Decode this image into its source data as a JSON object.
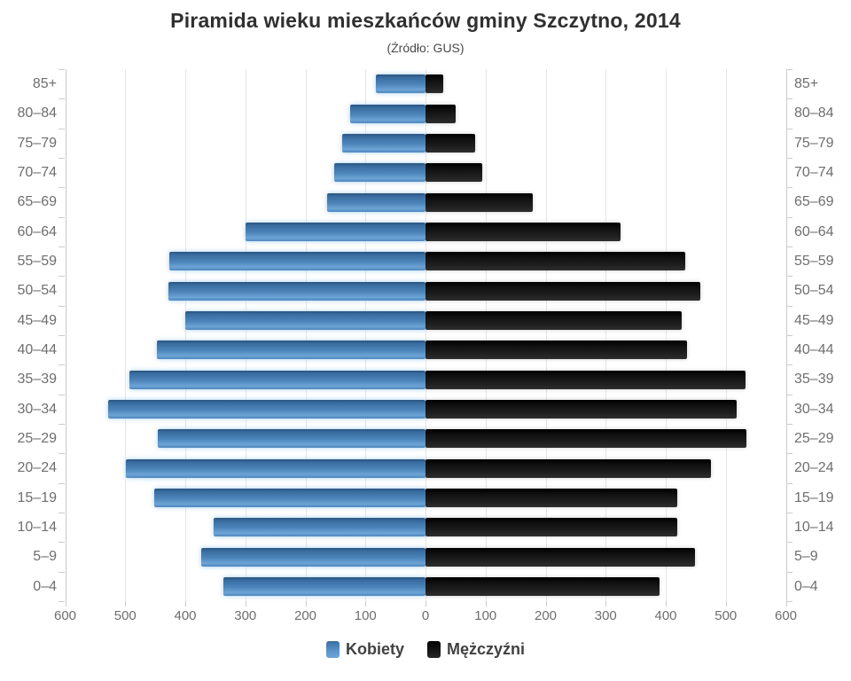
{
  "title": "Piramida wieku mieszkańców gminy Szczytno, 2014",
  "subtitle": "(Źródło: GUS)",
  "colors": {
    "kobiety": "#4e86bb",
    "mezczyzni": "#111111",
    "grid": "#e6e6e6",
    "axis": "#c9c9c9",
    "label_text": "#6e6e6e",
    "title_text": "#303030"
  },
  "chart_data": {
    "type": "bar",
    "variant": "population-pyramid",
    "title": "Piramida wieku mieszkańców gminy Szczytno, 2014",
    "subtitle": "(Źródło: GUS)",
    "categories": [
      "85+",
      "80–84",
      "75–79",
      "70–74",
      "65–69",
      "60–64",
      "55–59",
      "50–54",
      "45–49",
      "40–44",
      "35–39",
      "30–34",
      "25–29",
      "20–24",
      "15–19",
      "10–14",
      "5–9",
      "0–4"
    ],
    "series": [
      {
        "name": "Kobiety",
        "side": "left",
        "color": "#4e86bb",
        "values": [
          82,
          125,
          139,
          152,
          164,
          300,
          426,
          428,
          400,
          447,
          493,
          528,
          446,
          499,
          451,
          353,
          374,
          336
        ]
      },
      {
        "name": "Mężczyźni",
        "side": "right",
        "color": "#111111",
        "values": [
          30,
          50,
          83,
          95,
          179,
          324,
          432,
          458,
          427,
          436,
          533,
          518,
          535,
          476,
          419,
          419,
          449,
          390
        ]
      }
    ],
    "xlim": [
      0,
      600
    ],
    "tick_step": 100,
    "x_tick_labels": [
      "600",
      "500",
      "400",
      "300",
      "200",
      "100",
      "0",
      "100",
      "200",
      "300",
      "400",
      "500",
      "600"
    ],
    "grid": true,
    "legend_position": "bottom"
  }
}
